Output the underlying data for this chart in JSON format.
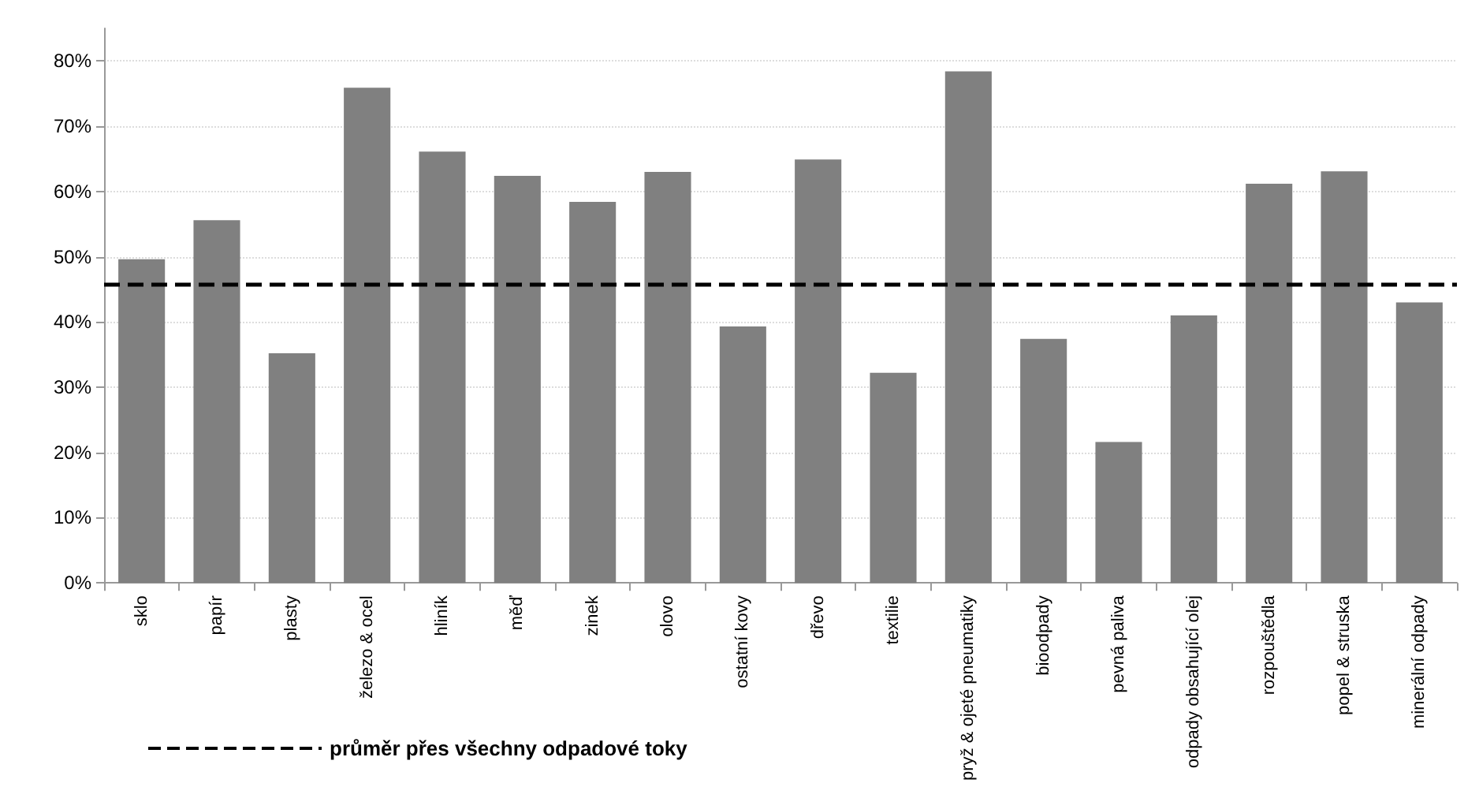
{
  "chart_data": {
    "type": "bar",
    "categories": [
      "sklo",
      "papír",
      "plasty",
      "železo & ocel",
      "hliník",
      "měď",
      "zinek",
      "olovo",
      "ostatní kovy",
      "dřevo",
      "textilie",
      "pryž & ojeté pneumatiky",
      "bioodpady",
      "pevná paliva",
      "odpady obsahující olej",
      "rozpouštědla",
      "popel & struska",
      "minerální odpady"
    ],
    "values": [
      49.6,
      55.6,
      35.2,
      75.9,
      66.1,
      62.4,
      58.4,
      63.0,
      39.3,
      64.9,
      32.2,
      78.4,
      37.4,
      21.6,
      41.0,
      61.2,
      63.1,
      43.0
    ],
    "color": "#808080",
    "ylim": [
      0,
      85
    ],
    "yticks": [
      {
        "value": 0,
        "label": "0%"
      },
      {
        "value": 10,
        "label": "10%"
      },
      {
        "value": 20,
        "label": "20%"
      },
      {
        "value": 30,
        "label": "30%"
      },
      {
        "value": 40,
        "label": "40%"
      },
      {
        "value": 50,
        "label": "50%"
      },
      {
        "value": 60,
        "label": "60%"
      },
      {
        "value": 70,
        "label": "70%"
      },
      {
        "value": 80,
        "label": "80%"
      }
    ],
    "grid": "y",
    "legend": "bottom left",
    "ref_lines": [
      {
        "axis": "y",
        "value": 45.8,
        "label": "průměr přes všechny odpadové toky",
        "color": "#000000",
        "line_style": "dashed"
      }
    ]
  }
}
